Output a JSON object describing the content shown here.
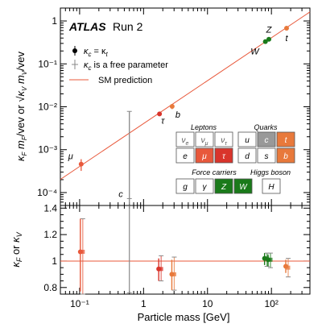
{
  "chart_data": [
    {
      "type": "scatter",
      "panel": "upper",
      "title": "ATLAS Run 2",
      "title_bold": "ATLAS",
      "title_rest": "Run 2",
      "xlabel": "Particle mass [GeV]",
      "ylabel": "κ_F m_F / vev or √κ_V m_V / vev",
      "ylabel_parts": {
        "main_a": "κ",
        "sub_a": "F",
        "frac_a_num": "m",
        "frac_a_num_sub": "F",
        "frac_a_den": "vev",
        "or": "or",
        "frac_b_num": "m",
        "frac_b_num_sub": "V",
        "kappa_b": "√κ",
        "kappa_b_sub": "V",
        "frac_b_den": "vev"
      },
      "x_scale": "log",
      "y_scale": "log",
      "xlim": [
        0.05,
        400
      ],
      "ylim": [
        5e-05,
        2
      ],
      "x_ticks": [
        {
          "value": 0.1,
          "label": "10⁻¹"
        },
        {
          "value": 1,
          "label": "1"
        },
        {
          "value": 10,
          "label": "10"
        },
        {
          "value": 100,
          "label": "10²"
        }
      ],
      "y_ticks": [
        {
          "value": 0.0001,
          "label": "10⁻⁴"
        },
        {
          "value": 0.001,
          "label": "10⁻³"
        },
        {
          "value": 0.01,
          "label": "10⁻²"
        },
        {
          "value": 0.1,
          "label": "10⁻¹"
        },
        {
          "value": 1,
          "label": "1"
        }
      ],
      "sm_prediction": {
        "x": [
          0.05,
          400
        ],
        "y": [
          0.000203,
          1.625
        ]
      },
      "legend": {
        "placement": "top-left",
        "entries": [
          {
            "label": "κ_c = κ_t",
            "label_parts": [
              "κ",
              "c",
              " = κ",
              "t"
            ],
            "marker": "filled-circle",
            "color": "#000000"
          },
          {
            "label": "κ_c is a free parameter",
            "label_parts": [
              "κ",
              "c",
              " is a free parameter"
            ],
            "marker": "open-bar",
            "color": "#888888"
          },
          {
            "label": "SM prediction",
            "marker": "line",
            "color": "#e8583b"
          }
        ]
      },
      "series": [
        {
          "point_label": "μ",
          "x": 0.1057,
          "y": 0.00046,
          "y_low": 0.00032,
          "y_high": 0.0006,
          "color": "#e8583b"
        },
        {
          "point_label": "τ",
          "x": 1.777,
          "y": 0.0068,
          "y_low": 0.0063,
          "y_high": 0.0073,
          "color": "#d9342b"
        },
        {
          "point_label": "b",
          "x": 2.8,
          "y": 0.0102,
          "y_low": 0.0088,
          "y_high": 0.0116,
          "color": "#e8793b"
        },
        {
          "point_label": "c",
          "x": 0.6,
          "y": 7.25e-05,
          "y_low": 5e-05,
          "y_high": 0.0078,
          "color": "#888888"
        },
        {
          "point_label": "W",
          "x": 80.4,
          "y": 0.33,
          "y_low": 0.32,
          "y_high": 0.345,
          "color": "#1a7a1a"
        },
        {
          "point_label": "Z",
          "x": 91.2,
          "y": 0.375,
          "y_low": 0.365,
          "y_high": 0.39,
          "color": "#1a7a1a"
        },
        {
          "point_label": "t",
          "x": 172.5,
          "y": 0.68,
          "y_low": 0.64,
          "y_high": 0.72,
          "color": "#e8793b"
        }
      ],
      "particle_table": {
        "lepton_heading": "Leptons",
        "quark_heading": "Quarks",
        "force_heading": "Force carriers",
        "higgs_heading": "Higgs boson",
        "leptons": [
          [
            {
              "symbol": "ν",
              "sub": "e",
              "fill": "#ffffff",
              "text_color": "#555555"
            },
            {
              "symbol": "ν",
              "sub": "μ",
              "fill": "#ffffff",
              "text_color": "#555555"
            },
            {
              "symbol": "ν",
              "sub": "τ",
              "fill": "#ffffff",
              "text_color": "#555555"
            }
          ],
          [
            {
              "symbol": "e",
              "sub": "",
              "fill": "#ffffff",
              "text_color": "#000000"
            },
            {
              "symbol": "μ",
              "sub": "",
              "fill": "#e8583b",
              "text_color": "#ffffff"
            },
            {
              "symbol": "τ",
              "sub": "",
              "fill": "#d9342b",
              "text_color": "#ffffff"
            }
          ]
        ],
        "quarks": [
          [
            {
              "symbol": "u",
              "sub": "",
              "fill": "#ffffff",
              "text_color": "#000000"
            },
            {
              "symbol": "c",
              "sub": "",
              "fill": "#999999",
              "text_color": "#ffffff"
            },
            {
              "symbol": "t",
              "sub": "",
              "fill": "#e8793b",
              "text_color": "#ffffff"
            }
          ],
          [
            {
              "symbol": "d",
              "sub": "",
              "fill": "#ffffff",
              "text_color": "#000000"
            },
            {
              "symbol": "s",
              "sub": "",
              "fill": "#ffffff",
              "text_color": "#000000"
            },
            {
              "symbol": "b",
              "sub": "",
              "fill": "#e8793b",
              "text_color": "#ffffff"
            }
          ]
        ],
        "force_carriers": [
          {
            "symbol": "g",
            "fill": "#ffffff",
            "text_color": "#000000"
          },
          {
            "symbol": "γ",
            "fill": "#ffffff",
            "text_color": "#000000"
          },
          {
            "symbol": "Z",
            "fill": "#1a7a1a",
            "text_color": "#ffffff"
          },
          {
            "symbol": "W",
            "fill": "#1a7a1a",
            "text_color": "#ffffff"
          }
        ],
        "higgs": [
          {
            "symbol": "H",
            "fill": "#ffffff",
            "text_color": "#000000"
          }
        ]
      }
    },
    {
      "type": "scatter",
      "panel": "lower",
      "xlabel": "Particle mass [GeV]",
      "ylabel": "κ_F or κ_V",
      "ylabel_parts": [
        "κ",
        "F",
        " or ",
        "κ",
        "V"
      ],
      "x_scale": "log",
      "xlim": [
        0.05,
        400
      ],
      "ylim": [
        0.75,
        1.42
      ],
      "y_ticks": [
        {
          "value": 0.8,
          "label": "0.8"
        },
        {
          "value": 1,
          "label": "1"
        },
        {
          "value": 1.2,
          "label": "1.2"
        },
        {
          "value": 1.4,
          "label": "1.4"
        }
      ],
      "reference_line": 1,
      "series": [
        {
          "name": "κ_c = κ_t",
          "points": [
            {
              "particle": "μ",
              "x": 0.1057,
              "y": 1.07,
              "y_low": 0.77,
              "y_high": 1.32,
              "color": "#e8583b"
            },
            {
              "particle": "τ",
              "x": 1.777,
              "y": 0.94,
              "y_low": 0.85,
              "y_high": 1.02,
              "color": "#d9342b"
            },
            {
              "particle": "b",
              "x": 2.85,
              "y": 0.9,
              "y_low": 0.78,
              "y_high": 1.01,
              "color": "#e8793b"
            },
            {
              "particle": "W",
              "x": 80.4,
              "y": 1.02,
              "y_low": 0.97,
              "y_high": 1.06,
              "color": "#1a7a1a"
            },
            {
              "particle": "Z",
              "x": 91.2,
              "y": 1.01,
              "y_low": 0.96,
              "y_high": 1.05,
              "color": "#1a7a1a"
            },
            {
              "particle": "t",
              "x": 172.5,
              "y": 0.96,
              "y_low": 0.91,
              "y_high": 1.01,
              "color": "#e8793b"
            }
          ]
        },
        {
          "name": "κ_c is a free parameter",
          "points": [
            {
              "particle": "μ",
              "x": 0.1057,
              "y": 1.07,
              "y_low": 0.75,
              "y_high": 1.32,
              "color": "#e8583b"
            },
            {
              "particle": "τ",
              "x": 1.777,
              "y": 0.94,
              "y_low": 0.85,
              "y_high": 1.04,
              "color": "#d9342b"
            },
            {
              "particle": "b",
              "x": 2.85,
              "y": 0.9,
              "y_low": 0.78,
              "y_high": 1.03,
              "color": "#e8793b"
            },
            {
              "particle": "c",
              "x": 0.6,
              "y": null,
              "y_low": 0.76,
              "y_high": 1.42,
              "color": "#888888"
            },
            {
              "particle": "W",
              "x": 80.4,
              "y": 1.02,
              "y_low": 0.96,
              "y_high": 1.06,
              "color": "#1a7a1a"
            },
            {
              "particle": "Z",
              "x": 91.2,
              "y": 1.01,
              "y_low": 0.95,
              "y_high": 1.06,
              "color": "#1a7a1a"
            },
            {
              "particle": "t",
              "x": 172.5,
              "y": 0.95,
              "y_low": 0.88,
              "y_high": 1.02,
              "color": "#e8793b"
            }
          ]
        }
      ]
    }
  ],
  "colors": {
    "sm_line": "#e8583b",
    "axis": "#000000",
    "free_kappa_c": "#888888"
  }
}
